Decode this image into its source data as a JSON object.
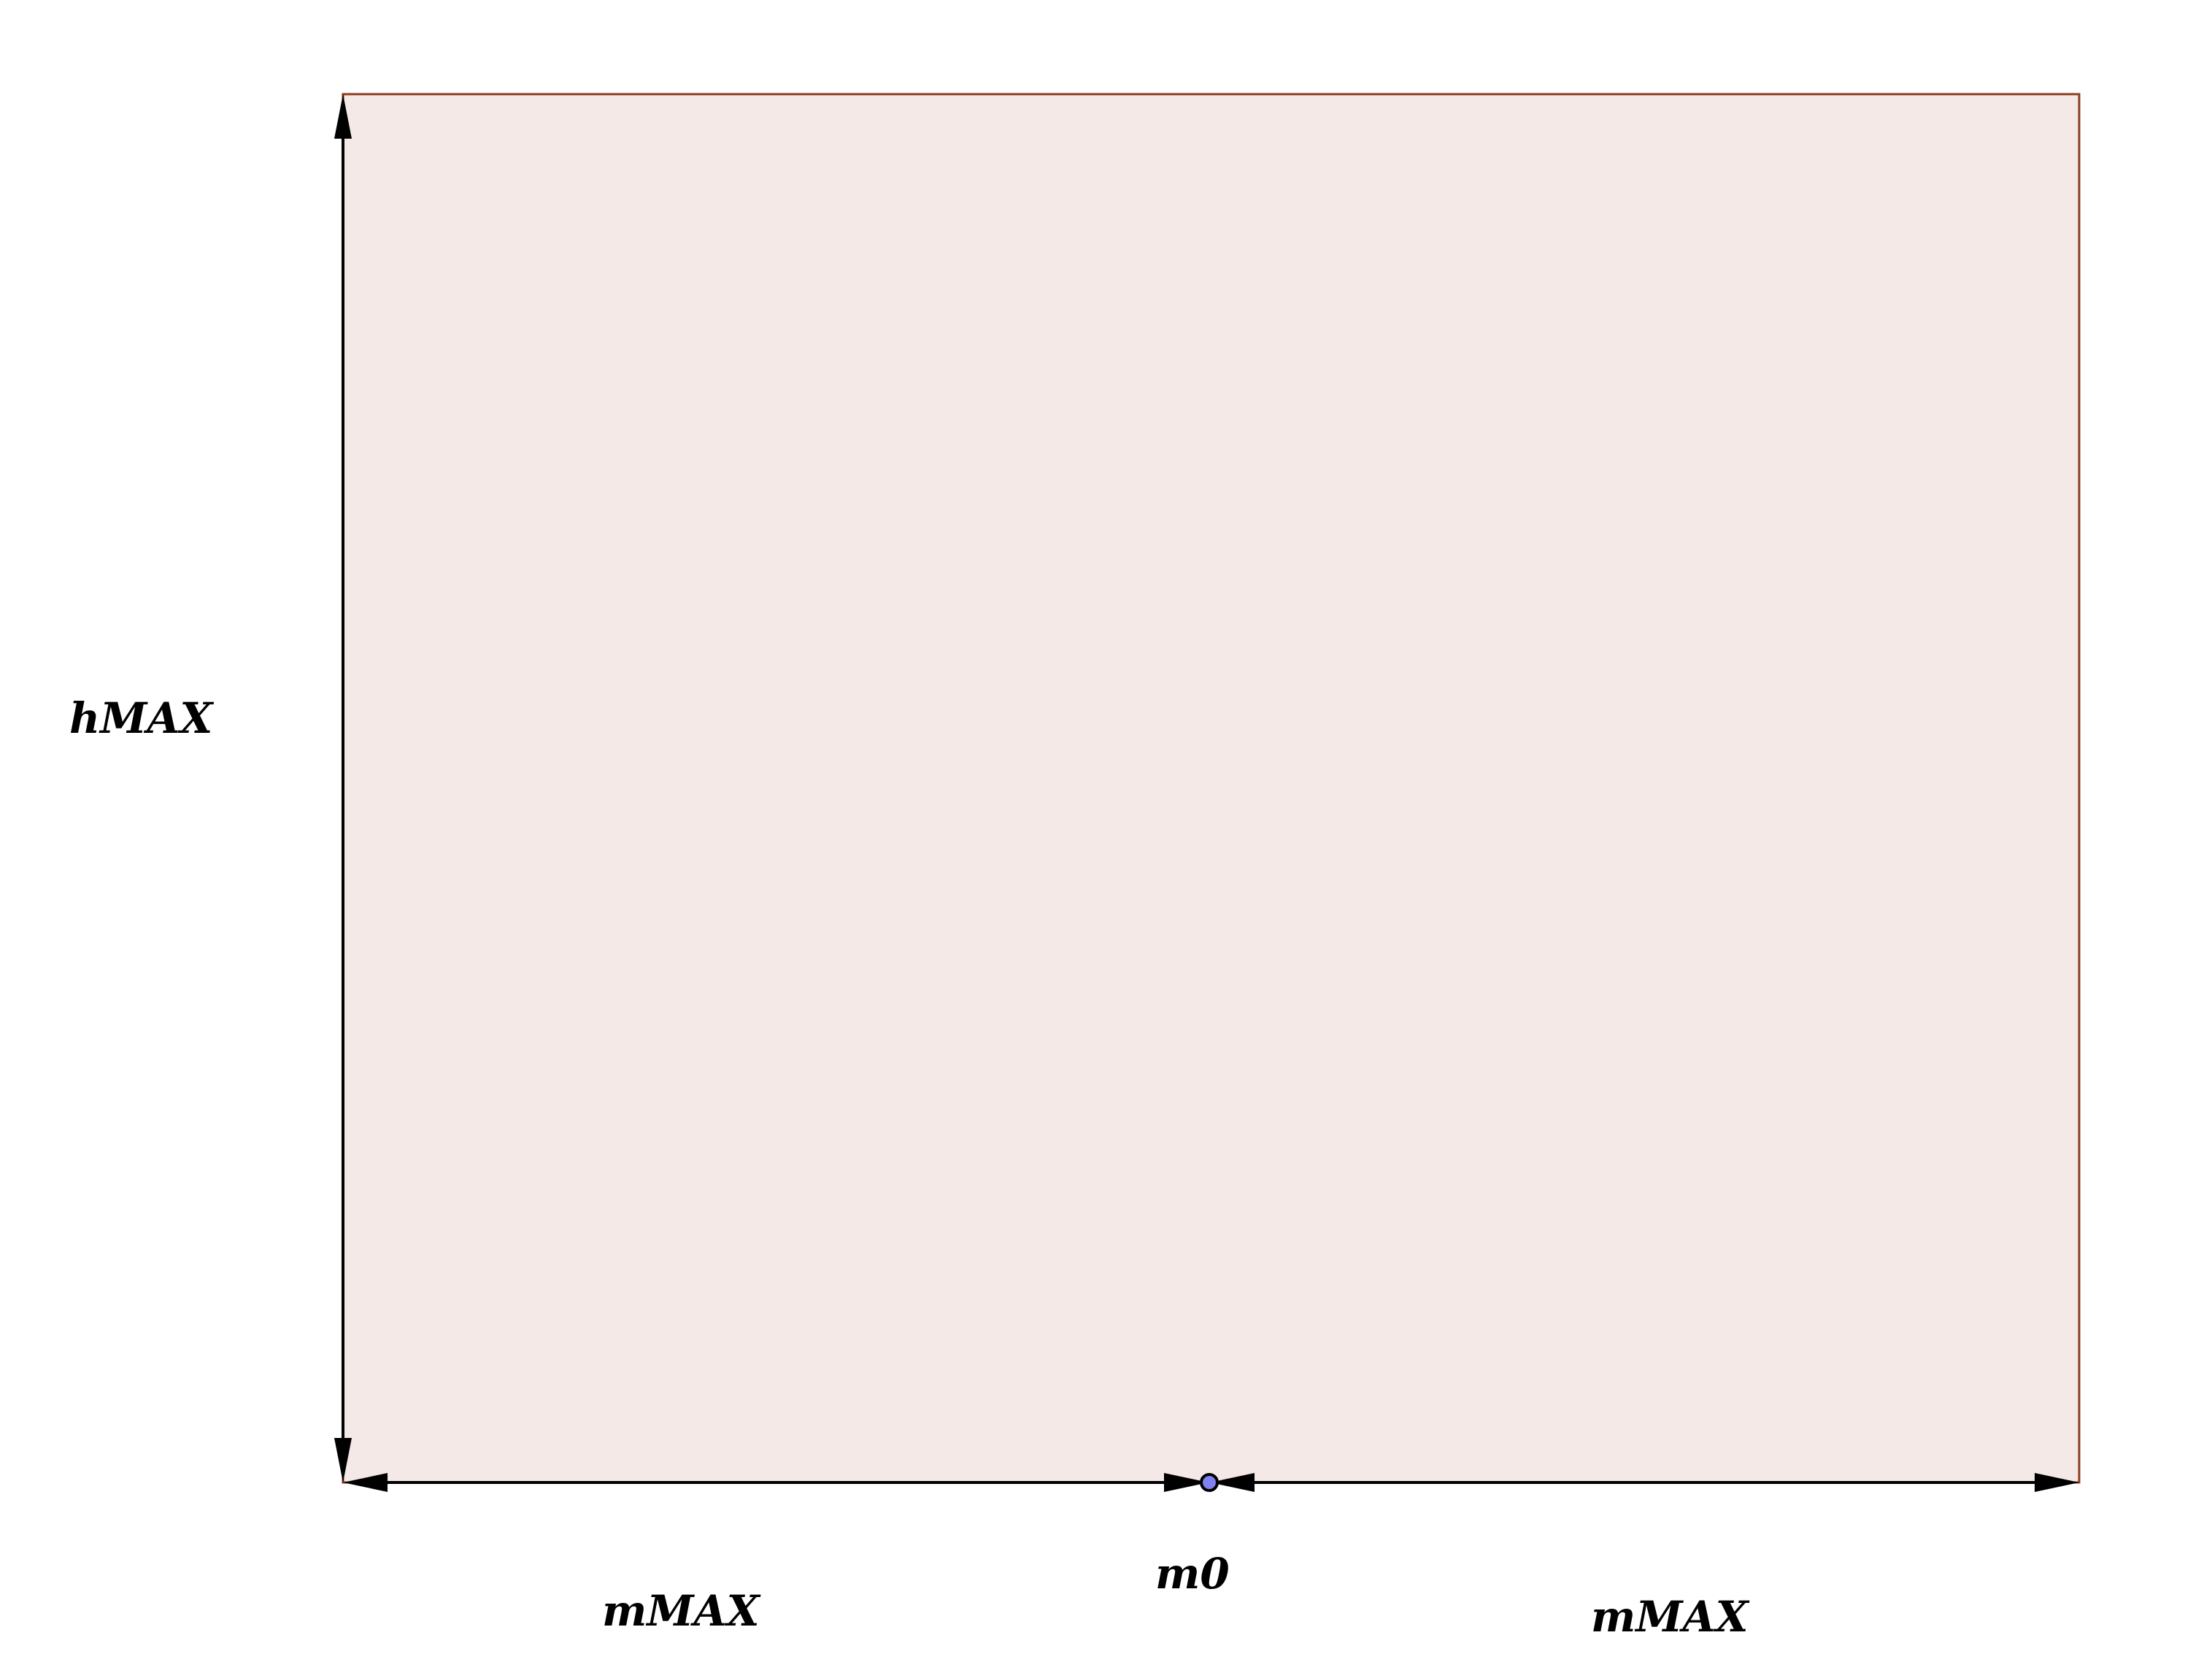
{
  "diagram": {
    "labels": {
      "height": "hMAX",
      "center": "m0",
      "left_width": "mMAX",
      "right_width": "mMAX"
    },
    "colors": {
      "region_fill": "#f4e9e6",
      "region_stroke": "#8b3a1f",
      "arrow": "#000000",
      "point_fill": "#8080f0",
      "point_stroke": "#000000"
    }
  }
}
